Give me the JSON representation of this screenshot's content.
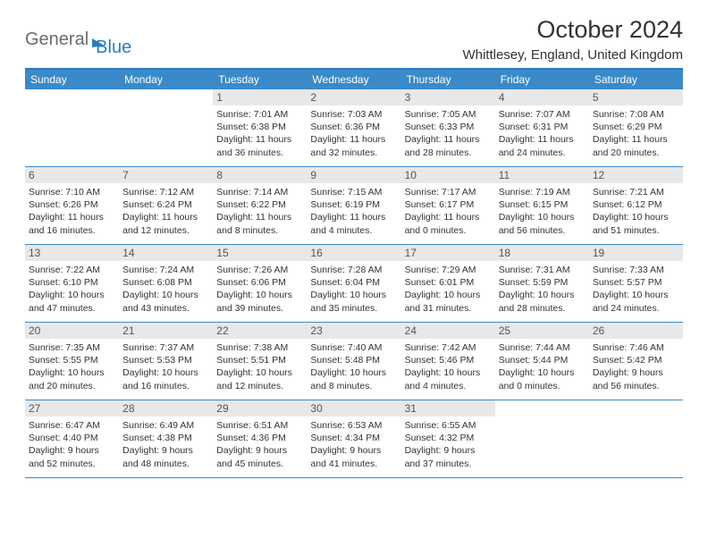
{
  "logo": {
    "part1": "General",
    "part2": "Blue"
  },
  "title": "October 2024",
  "location": "Whittlesey, England, United Kingdom",
  "colors": {
    "accent": "#3a8ac9",
    "accent_dark": "#2e7bbf",
    "day_bar": "#e8e8e8",
    "text": "#333333"
  },
  "day_names": [
    "Sunday",
    "Monday",
    "Tuesday",
    "Wednesday",
    "Thursday",
    "Friday",
    "Saturday"
  ],
  "weeks": [
    [
      null,
      null,
      {
        "n": "1",
        "sr": "7:01 AM",
        "ss": "6:38 PM",
        "dl": "11 hours and 36 minutes."
      },
      {
        "n": "2",
        "sr": "7:03 AM",
        "ss": "6:36 PM",
        "dl": "11 hours and 32 minutes."
      },
      {
        "n": "3",
        "sr": "7:05 AM",
        "ss": "6:33 PM",
        "dl": "11 hours and 28 minutes."
      },
      {
        "n": "4",
        "sr": "7:07 AM",
        "ss": "6:31 PM",
        "dl": "11 hours and 24 minutes."
      },
      {
        "n": "5",
        "sr": "7:08 AM",
        "ss": "6:29 PM",
        "dl": "11 hours and 20 minutes."
      }
    ],
    [
      {
        "n": "6",
        "sr": "7:10 AM",
        "ss": "6:26 PM",
        "dl": "11 hours and 16 minutes."
      },
      {
        "n": "7",
        "sr": "7:12 AM",
        "ss": "6:24 PM",
        "dl": "11 hours and 12 minutes."
      },
      {
        "n": "8",
        "sr": "7:14 AM",
        "ss": "6:22 PM",
        "dl": "11 hours and 8 minutes."
      },
      {
        "n": "9",
        "sr": "7:15 AM",
        "ss": "6:19 PM",
        "dl": "11 hours and 4 minutes."
      },
      {
        "n": "10",
        "sr": "7:17 AM",
        "ss": "6:17 PM",
        "dl": "11 hours and 0 minutes."
      },
      {
        "n": "11",
        "sr": "7:19 AM",
        "ss": "6:15 PM",
        "dl": "10 hours and 56 minutes."
      },
      {
        "n": "12",
        "sr": "7:21 AM",
        "ss": "6:12 PM",
        "dl": "10 hours and 51 minutes."
      }
    ],
    [
      {
        "n": "13",
        "sr": "7:22 AM",
        "ss": "6:10 PM",
        "dl": "10 hours and 47 minutes."
      },
      {
        "n": "14",
        "sr": "7:24 AM",
        "ss": "6:08 PM",
        "dl": "10 hours and 43 minutes."
      },
      {
        "n": "15",
        "sr": "7:26 AM",
        "ss": "6:06 PM",
        "dl": "10 hours and 39 minutes."
      },
      {
        "n": "16",
        "sr": "7:28 AM",
        "ss": "6:04 PM",
        "dl": "10 hours and 35 minutes."
      },
      {
        "n": "17",
        "sr": "7:29 AM",
        "ss": "6:01 PM",
        "dl": "10 hours and 31 minutes."
      },
      {
        "n": "18",
        "sr": "7:31 AM",
        "ss": "5:59 PM",
        "dl": "10 hours and 28 minutes."
      },
      {
        "n": "19",
        "sr": "7:33 AM",
        "ss": "5:57 PM",
        "dl": "10 hours and 24 minutes."
      }
    ],
    [
      {
        "n": "20",
        "sr": "7:35 AM",
        "ss": "5:55 PM",
        "dl": "10 hours and 20 minutes."
      },
      {
        "n": "21",
        "sr": "7:37 AM",
        "ss": "5:53 PM",
        "dl": "10 hours and 16 minutes."
      },
      {
        "n": "22",
        "sr": "7:38 AM",
        "ss": "5:51 PM",
        "dl": "10 hours and 12 minutes."
      },
      {
        "n": "23",
        "sr": "7:40 AM",
        "ss": "5:48 PM",
        "dl": "10 hours and 8 minutes."
      },
      {
        "n": "24",
        "sr": "7:42 AM",
        "ss": "5:46 PM",
        "dl": "10 hours and 4 minutes."
      },
      {
        "n": "25",
        "sr": "7:44 AM",
        "ss": "5:44 PM",
        "dl": "10 hours and 0 minutes."
      },
      {
        "n": "26",
        "sr": "7:46 AM",
        "ss": "5:42 PM",
        "dl": "9 hours and 56 minutes."
      }
    ],
    [
      {
        "n": "27",
        "sr": "6:47 AM",
        "ss": "4:40 PM",
        "dl": "9 hours and 52 minutes."
      },
      {
        "n": "28",
        "sr": "6:49 AM",
        "ss": "4:38 PM",
        "dl": "9 hours and 48 minutes."
      },
      {
        "n": "29",
        "sr": "6:51 AM",
        "ss": "4:36 PM",
        "dl": "9 hours and 45 minutes."
      },
      {
        "n": "30",
        "sr": "6:53 AM",
        "ss": "4:34 PM",
        "dl": "9 hours and 41 minutes."
      },
      {
        "n": "31",
        "sr": "6:55 AM",
        "ss": "4:32 PM",
        "dl": "9 hours and 37 minutes."
      },
      null,
      null
    ]
  ],
  "labels": {
    "sunrise": "Sunrise:",
    "sunset": "Sunset:",
    "daylight": "Daylight:"
  }
}
